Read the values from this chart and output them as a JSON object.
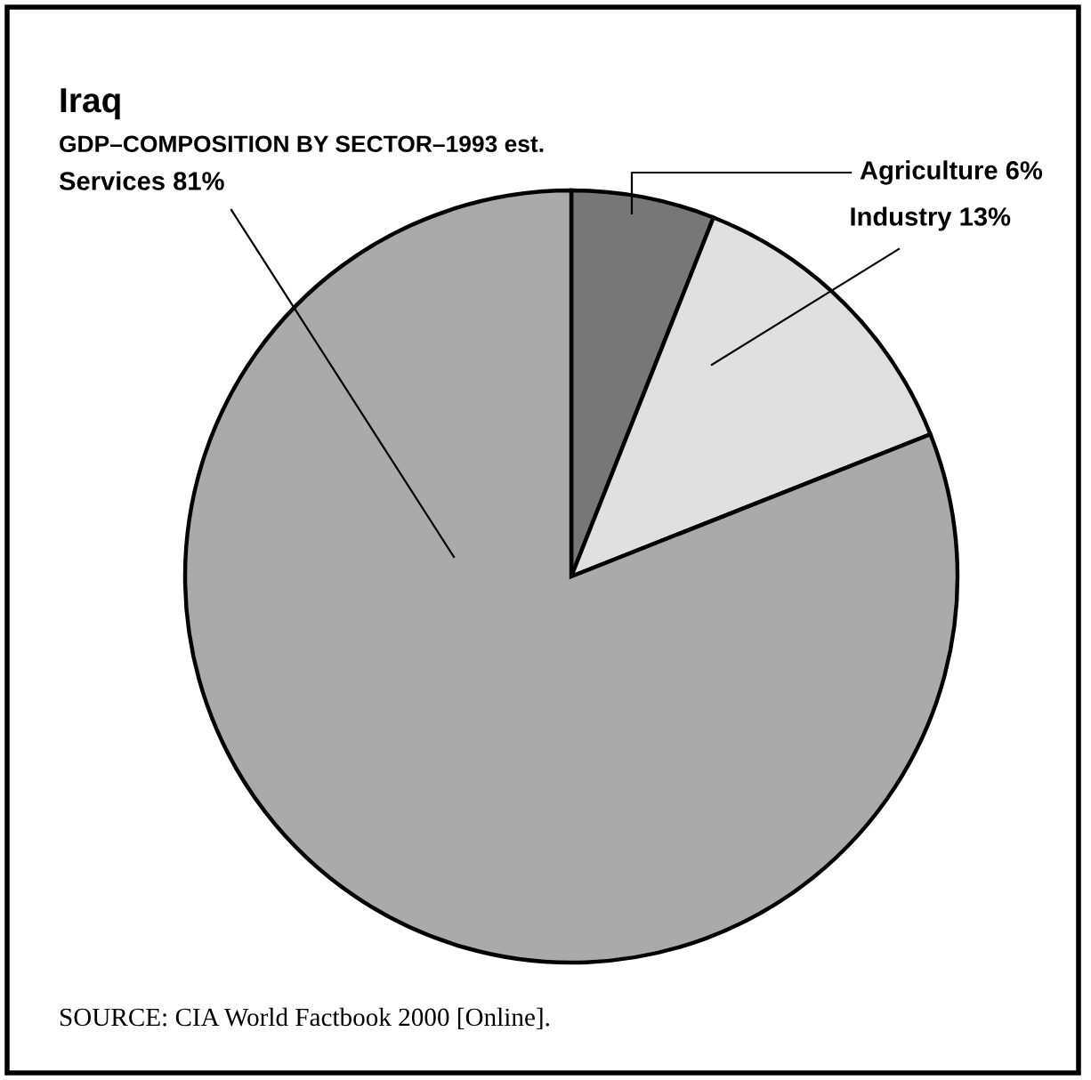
{
  "chart_data": {
    "type": "pie",
    "title": "Iraq",
    "subtitle": "GDP–COMPOSITION BY SECTOR–1993 est.",
    "categories": [
      "Agriculture",
      "Industry",
      "Services"
    ],
    "values": [
      6,
      13,
      81
    ],
    "value_labels": [
      "6%",
      "13%",
      "81%"
    ],
    "colors": [
      "#777777",
      "#e0e0e0",
      "#aaaaaa"
    ],
    "annotations": [
      "SOURCE: CIA World Factbook 2000 [Online]."
    ]
  }
}
